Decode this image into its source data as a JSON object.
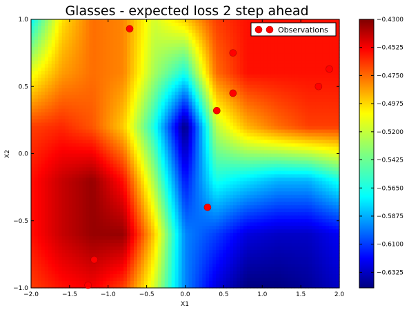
{
  "chart_data": {
    "type": "heatmap",
    "title": "Glasses - expected loss 2 step ahead",
    "xlabel": "X1",
    "ylabel": "X2",
    "xlim": [
      -2.0,
      2.0
    ],
    "ylim": [
      -1.0,
      1.0
    ],
    "x_ticks": [
      "−2.0",
      "−1.5",
      "−1.0",
      "−0.5",
      "0.0",
      "0.5",
      "1.0",
      "1.5",
      "2.0"
    ],
    "x_tick_values": [
      -2.0,
      -1.5,
      -1.0,
      -0.5,
      0.0,
      0.5,
      1.0,
      1.5,
      2.0
    ],
    "y_ticks": [
      "−1.0",
      "−0.5",
      "0.0",
      "0.5",
      "1.0"
    ],
    "y_tick_values": [
      -1.0,
      -0.5,
      0.0,
      0.5,
      1.0
    ],
    "colorbar": {
      "min": -0.645,
      "max": -0.43,
      "ticks": [
        "−0.4300",
        "−0.4525",
        "−0.4750",
        "−0.4975",
        "−0.5200",
        "−0.5425",
        "−0.5650",
        "−0.5875",
        "−0.6100",
        "−0.6325"
      ],
      "tick_values": [
        -0.43,
        -0.4525,
        -0.475,
        -0.4975,
        -0.52,
        -0.5425,
        -0.565,
        -0.5875,
        -0.61,
        -0.6325
      ],
      "colormap": "jet"
    },
    "legend": {
      "position": "top-right",
      "entries": [
        "Observations"
      ]
    },
    "observations": {
      "name": "Observations",
      "color": "#ff0000",
      "x": [
        -0.72,
        0.62,
        1.87,
        1.73,
        0.62,
        0.41,
        0.29,
        -1.18,
        -1.26
      ],
      "y": [
        0.93,
        0.75,
        0.63,
        0.5,
        0.45,
        0.32,
        -0.4,
        -0.79,
        -0.98
      ]
    },
    "surface_grid": {
      "x": [
        -2.0,
        -1.6,
        -1.2,
        -0.8,
        -0.4,
        0.0,
        0.4,
        0.8,
        1.2,
        1.6,
        2.0
      ],
      "y": [
        1.0,
        0.6,
        0.2,
        -0.2,
        -0.6,
        -1.0
      ],
      "z": [
        [
          -0.565,
          -0.505,
          -0.48,
          -0.485,
          -0.52,
          -0.5,
          -0.47,
          -0.46,
          -0.46,
          -0.46,
          -0.46
        ],
        [
          -0.515,
          -0.49,
          -0.48,
          -0.485,
          -0.53,
          -0.56,
          -0.48,
          -0.46,
          -0.46,
          -0.46,
          -0.46
        ],
        [
          -0.47,
          -0.465,
          -0.475,
          -0.5,
          -0.56,
          -0.645,
          -0.525,
          -0.495,
          -0.48,
          -0.47,
          -0.47
        ],
        [
          -0.46,
          -0.445,
          -0.435,
          -0.46,
          -0.53,
          -0.615,
          -0.56,
          -0.57,
          -0.58,
          -0.58,
          -0.56
        ],
        [
          -0.46,
          -0.445,
          -0.435,
          -0.435,
          -0.5,
          -0.59,
          -0.605,
          -0.625,
          -0.63,
          -0.63,
          -0.62
        ],
        [
          -0.47,
          -0.46,
          -0.455,
          -0.47,
          -0.52,
          -0.59,
          -0.625,
          -0.645,
          -0.645,
          -0.64,
          -0.63
        ]
      ]
    }
  }
}
